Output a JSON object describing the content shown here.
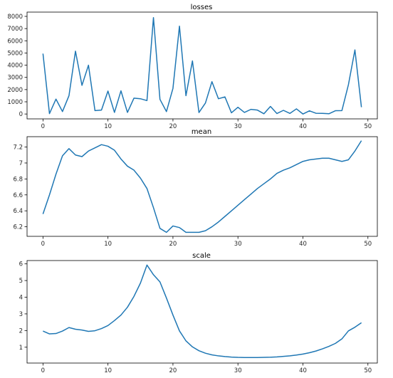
{
  "chart_data": [
    {
      "type": "line",
      "title": "losses",
      "xlabel": "",
      "ylabel": "",
      "xlim": [
        -2.45,
        51.45
      ],
      "ylim": [
        -400,
        8350
      ],
      "xticks": [
        0,
        10,
        20,
        30,
        40,
        50
      ],
      "yticks": [
        0,
        1000,
        2000,
        3000,
        4000,
        5000,
        6000,
        7000,
        8000
      ],
      "color": "#1f77b4",
      "grid": false,
      "series": [
        {
          "x": [
            0,
            1,
            2,
            3,
            4,
            5,
            6,
            7,
            8,
            9,
            10,
            11,
            12,
            13,
            14,
            15,
            16,
            17,
            18,
            19,
            20,
            21,
            22,
            23,
            24,
            25,
            26,
            27,
            28,
            29,
            30,
            31,
            32,
            33,
            34,
            35,
            36,
            37,
            38,
            39,
            40,
            41,
            42,
            43,
            44,
            45,
            46,
            47,
            48,
            49
          ],
          "values": [
            4950,
            30,
            1220,
            200,
            1500,
            5150,
            2350,
            4000,
            280,
            320,
            1880,
            130,
            1900,
            130,
            1300,
            1250,
            1100,
            7900,
            1200,
            200,
            2100,
            7200,
            1500,
            4350,
            120,
            900,
            2650,
            1250,
            1400,
            100,
            550,
            130,
            380,
            320,
            20,
            620,
            40,
            300,
            50,
            420,
            0,
            260,
            60,
            50,
            20,
            270,
            280,
            2400,
            5250,
            560
          ]
        }
      ]
    },
    {
      "type": "line",
      "title": "mean",
      "xlabel": "",
      "ylabel": "",
      "xlim": [
        -2.45,
        51.45
      ],
      "ylim": [
        6.08,
        7.33
      ],
      "xticks": [
        0,
        10,
        20,
        30,
        40,
        50
      ],
      "yticks": [
        6.2,
        6.4,
        6.6,
        6.8,
        7.0,
        7.2
      ],
      "color": "#1f77b4",
      "grid": false,
      "series": [
        {
          "x": [
            0,
            1,
            2,
            3,
            4,
            5,
            6,
            7,
            8,
            9,
            10,
            11,
            12,
            13,
            14,
            15,
            16,
            17,
            18,
            19,
            20,
            21,
            22,
            23,
            24,
            25,
            26,
            27,
            28,
            29,
            30,
            31,
            32,
            33,
            34,
            35,
            36,
            37,
            38,
            39,
            40,
            41,
            42,
            43,
            44,
            45,
            46,
            47,
            48,
            49
          ],
          "values": [
            6.36,
            6.6,
            6.86,
            7.09,
            7.18,
            7.1,
            7.08,
            7.15,
            7.19,
            7.23,
            7.21,
            7.16,
            7.05,
            6.96,
            6.91,
            6.81,
            6.68,
            6.44,
            6.18,
            6.13,
            6.21,
            6.19,
            6.13,
            6.13,
            6.13,
            6.15,
            6.2,
            6.26,
            6.33,
            6.4,
            6.47,
            6.54,
            6.61,
            6.68,
            6.74,
            6.8,
            6.87,
            6.91,
            6.94,
            6.98,
            7.02,
            7.04,
            7.05,
            7.06,
            7.06,
            7.04,
            7.02,
            7.04,
            7.15,
            7.28
          ]
        }
      ]
    },
    {
      "type": "line",
      "title": "scale",
      "xlabel": "",
      "ylabel": "",
      "xlim": [
        -2.45,
        51.45
      ],
      "ylim": [
        0.05,
        6.2
      ],
      "xticks": [
        0,
        10,
        20,
        30,
        40,
        50
      ],
      "yticks": [
        1,
        2,
        3,
        4,
        5,
        6
      ],
      "color": "#1f77b4",
      "grid": false,
      "series": [
        {
          "x": [
            0,
            1,
            2,
            3,
            4,
            5,
            6,
            7,
            8,
            9,
            10,
            11,
            12,
            13,
            14,
            15,
            16,
            17,
            18,
            19,
            20,
            21,
            22,
            23,
            24,
            25,
            26,
            27,
            28,
            29,
            30,
            31,
            32,
            33,
            34,
            35,
            36,
            37,
            38,
            39,
            40,
            41,
            42,
            43,
            44,
            45,
            46,
            47,
            48,
            49
          ],
          "values": [
            1.97,
            1.8,
            1.82,
            1.97,
            2.18,
            2.08,
            2.03,
            1.95,
            1.99,
            2.12,
            2.3,
            2.6,
            2.93,
            3.4,
            4.05,
            4.85,
            5.93,
            5.35,
            4.92,
            3.95,
            2.93,
            1.98,
            1.38,
            1.02,
            0.79,
            0.64,
            0.54,
            0.48,
            0.44,
            0.41,
            0.39,
            0.38,
            0.38,
            0.38,
            0.39,
            0.4,
            0.42,
            0.45,
            0.48,
            0.53,
            0.59,
            0.67,
            0.77,
            0.9,
            1.05,
            1.23,
            1.5,
            1.98,
            2.2,
            2.47
          ]
        }
      ]
    }
  ]
}
